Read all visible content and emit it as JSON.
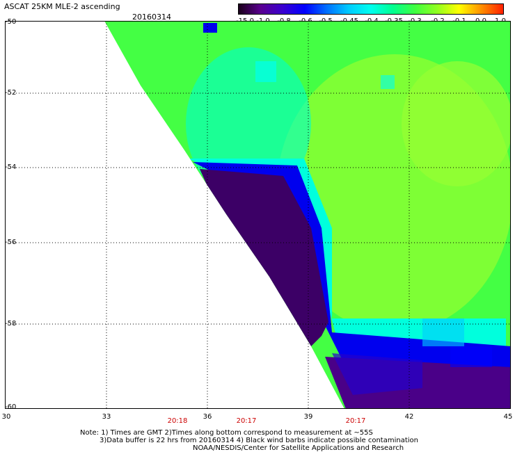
{
  "header": {
    "title": "ASCAT 25KM MLE-2 ascending",
    "date": "20160314"
  },
  "colorbar": {
    "labels": [
      "-15.0",
      "-1.0",
      "-0.8",
      "-0.6",
      "-0.5",
      "-0.45",
      "-0.4",
      "-0.35",
      "-0.3",
      "-0.2",
      "-0.1",
      "0.0",
      "1.0"
    ],
    "colors": [
      "#1a001a",
      "#5a0090",
      "#3a00d0",
      "#0000ff",
      "#0070ff",
      "#00ccff",
      "#00ffee",
      "#00ff90",
      "#40ff40",
      "#90ff20",
      "#ffff00",
      "#ff9000",
      "#ff2000"
    ]
  },
  "map": {
    "lat_labels": [
      "-50",
      "-52",
      "-54",
      "-56",
      "-58",
      "-60"
    ],
    "lon_labels": [
      "30",
      "33",
      "36",
      "39",
      "42",
      "45"
    ],
    "time_labels": [
      "20:18",
      "20:17",
      "20:17"
    ],
    "grid": "dotted"
  },
  "notes": {
    "line1": "Note: 1) Times are GMT 2)Times along bottom correspond to measurement at ~55S",
    "line2": "3)Data buffer is 22 hrs from 20160314 4) Black wind barbs indicate possible contamination",
    "line3": "NOAA/NESDIS/Center for Satellite Applications and Research"
  }
}
